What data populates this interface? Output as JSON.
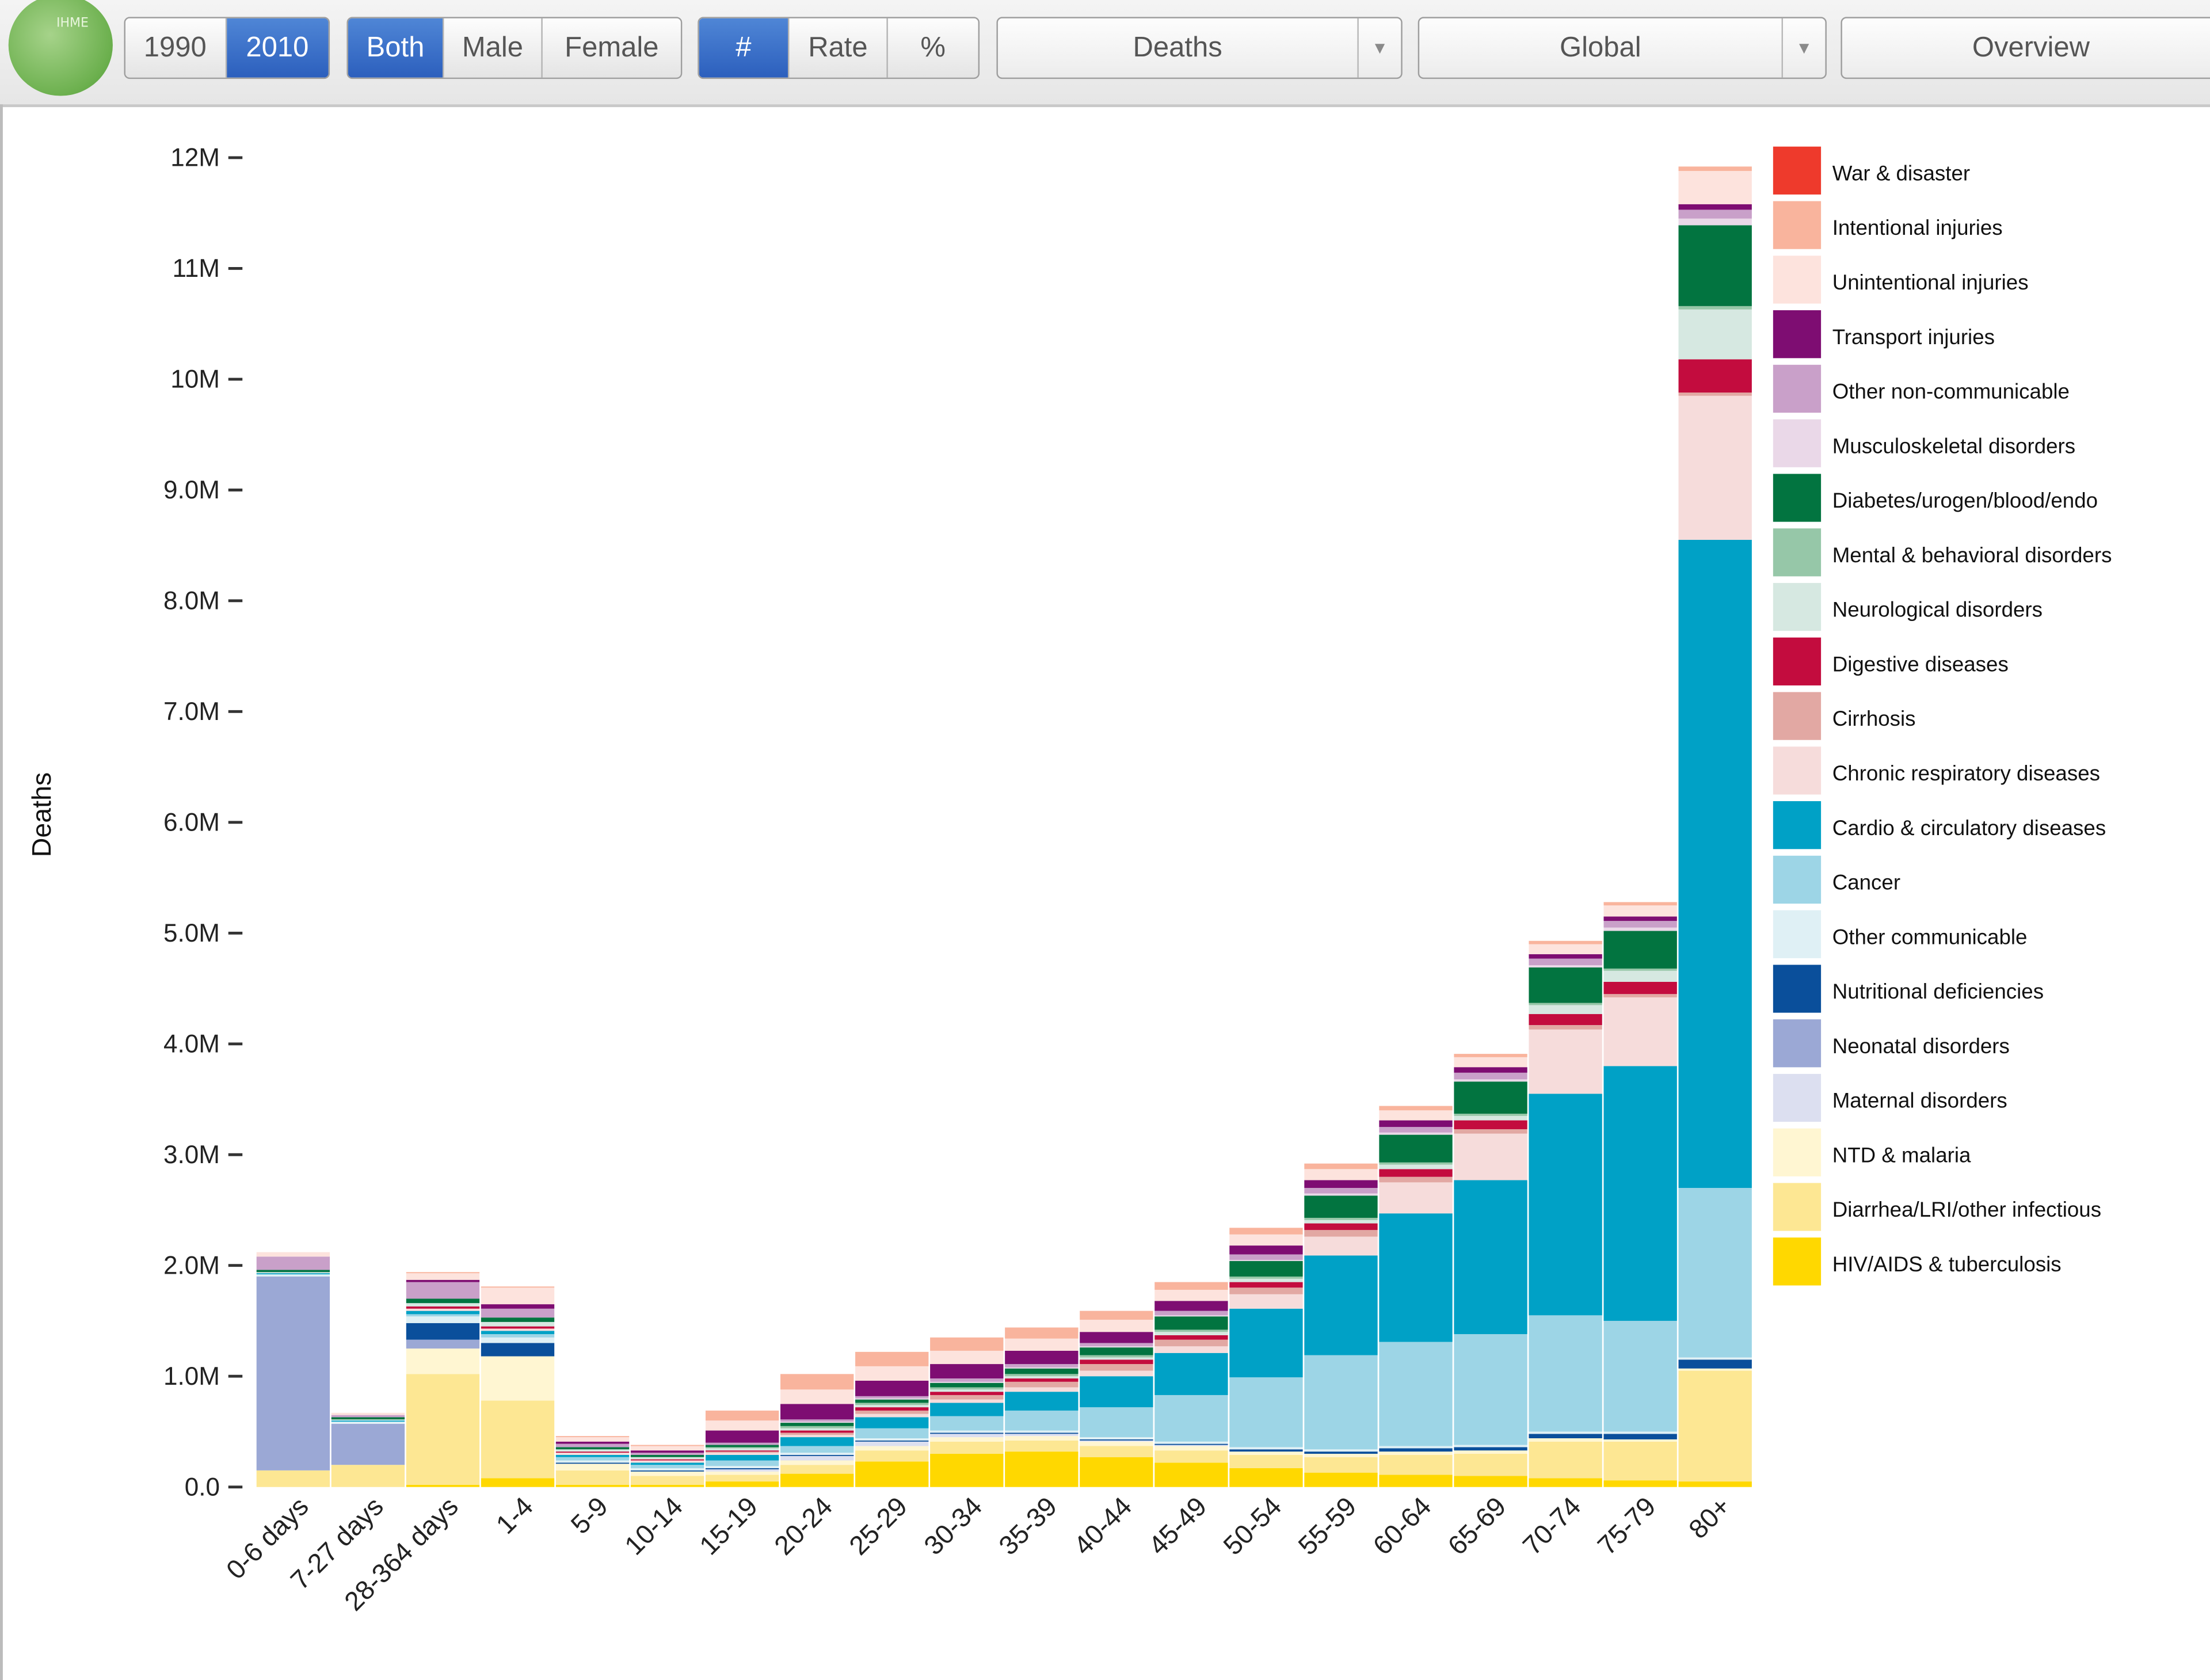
{
  "toolbar": {
    "logo_text": "IHME",
    "years": [
      "1990",
      "2010"
    ],
    "year_active": 1,
    "sexes": [
      "Both",
      "Male",
      "Female"
    ],
    "sex_active": 0,
    "units": [
      "#",
      "Rate",
      "%"
    ],
    "unit_active": 0,
    "measure": "Deaths",
    "location": "Global",
    "view": "Overview"
  },
  "chart_data": {
    "type": "bar",
    "stacked": true,
    "xlabel": "",
    "ylabel": "Deaths",
    "ylim": [
      0,
      12100000
    ],
    "yticks": [
      {
        "value": 0,
        "label": "0.0"
      },
      {
        "value": 1000000,
        "label": "1.0M"
      },
      {
        "value": 2000000,
        "label": "2.0M"
      },
      {
        "value": 3000000,
        "label": "3.0M"
      },
      {
        "value": 4000000,
        "label": "4.0M"
      },
      {
        "value": 5000000,
        "label": "5.0M"
      },
      {
        "value": 6000000,
        "label": "6.0M"
      },
      {
        "value": 7000000,
        "label": "7.0M"
      },
      {
        "value": 8000000,
        "label": "8.0M"
      },
      {
        "value": 9000000,
        "label": "9.0M"
      },
      {
        "value": 10000000,
        "label": "10M"
      },
      {
        "value": 11000000,
        "label": "11M"
      },
      {
        "value": 12000000,
        "label": "12M"
      }
    ],
    "categories": [
      "0-6 days",
      "7-27 days",
      "28-364 days",
      "1-4",
      "5-9",
      "10-14",
      "15-19",
      "20-24",
      "25-29",
      "30-34",
      "35-39",
      "40-44",
      "45-49",
      "50-54",
      "55-59",
      "60-64",
      "65-69",
      "70-74",
      "75-79",
      "80+"
    ],
    "legend_position": "right",
    "series": [
      {
        "name": "HIV/AIDS & tuberculosis",
        "color": "#ffd800",
        "values": [
          0,
          0,
          20000,
          80000,
          20000,
          20000,
          50000,
          120000,
          230000,
          300000,
          320000,
          270000,
          220000,
          170000,
          130000,
          110000,
          100000,
          80000,
          60000,
          50000
        ]
      },
      {
        "name": "Diarrhea/LRI/other infectious",
        "color": "#fde793",
        "values": [
          150000,
          200000,
          1000000,
          700000,
          130000,
          80000,
          60000,
          80000,
          100000,
          110000,
          100000,
          100000,
          110000,
          120000,
          140000,
          180000,
          200000,
          330000,
          350000,
          1000000
        ]
      },
      {
        "name": "NTD & malaria",
        "color": "#fff6d2",
        "values": [
          0,
          0,
          230000,
          400000,
          60000,
          40000,
          30000,
          40000,
          40000,
          40000,
          40000,
          40000,
          40000,
          30000,
          30000,
          30000,
          30000,
          30000,
          20000,
          20000
        ]
      },
      {
        "name": "Maternal disorders",
        "color": "#dcdff0",
        "values": [
          0,
          0,
          0,
          0,
          0,
          0,
          20000,
          40000,
          40000,
          30000,
          20000,
          10000,
          10000,
          0,
          0,
          0,
          0,
          0,
          0,
          0
        ]
      },
      {
        "name": "Neonatal disorders",
        "color": "#9ba8d5",
        "values": [
          1750000,
          370000,
          80000,
          0,
          0,
          0,
          0,
          0,
          0,
          0,
          0,
          0,
          0,
          0,
          0,
          0,
          0,
          0,
          0,
          0
        ]
      },
      {
        "name": "Nutritional deficiencies",
        "color": "#0a4f9b",
        "values": [
          0,
          0,
          150000,
          120000,
          10000,
          10000,
          10000,
          10000,
          10000,
          10000,
          10000,
          10000,
          10000,
          20000,
          20000,
          30000,
          30000,
          40000,
          50000,
          80000
        ]
      },
      {
        "name": "Other communicable",
        "color": "#dff0f5",
        "values": [
          20000,
          20000,
          60000,
          50000,
          20000,
          20000,
          20000,
          20000,
          20000,
          20000,
          20000,
          20000,
          20000,
          20000,
          20000,
          20000,
          20000,
          20000,
          20000,
          20000
        ]
      },
      {
        "name": "Cancer",
        "color": "#9dd5e6",
        "values": [
          0,
          0,
          20000,
          30000,
          30000,
          30000,
          50000,
          60000,
          90000,
          130000,
          180000,
          270000,
          420000,
          630000,
          850000,
          940000,
          1000000,
          1050000,
          1000000,
          1530000
        ]
      },
      {
        "name": "Cardio & circulatory diseases",
        "color": "#00a1c6",
        "values": [
          10000,
          10000,
          30000,
          30000,
          20000,
          20000,
          50000,
          80000,
          100000,
          120000,
          170000,
          280000,
          380000,
          620000,
          900000,
          1160000,
          1390000,
          2000000,
          2300000,
          5850000
        ]
      },
      {
        "name": "Chronic respiratory diseases",
        "color": "#f6dcdb",
        "values": [
          0,
          0,
          20000,
          20000,
          20000,
          20000,
          20000,
          20000,
          30000,
          30000,
          40000,
          50000,
          60000,
          130000,
          170000,
          280000,
          420000,
          580000,
          620000,
          1300000
        ]
      },
      {
        "name": "Cirrhosis",
        "color": "#e2a8a3",
        "values": [
          0,
          0,
          0,
          0,
          0,
          0,
          10000,
          20000,
          30000,
          40000,
          50000,
          60000,
          60000,
          60000,
          60000,
          50000,
          40000,
          40000,
          30000,
          30000
        ]
      },
      {
        "name": "Digestive diseases",
        "color": "#c30c3e",
        "values": [
          0,
          0,
          20000,
          20000,
          10000,
          10000,
          10000,
          20000,
          30000,
          30000,
          30000,
          40000,
          40000,
          50000,
          60000,
          70000,
          80000,
          100000,
          110000,
          300000
        ]
      },
      {
        "name": "Neurological disorders",
        "color": "#d6e8e1",
        "values": [
          10000,
          10000,
          30000,
          40000,
          20000,
          20000,
          20000,
          20000,
          20000,
          20000,
          20000,
          20000,
          30000,
          30000,
          30000,
          40000,
          40000,
          80000,
          100000,
          450000
        ]
      },
      {
        "name": "Mental & behavioral disorders",
        "color": "#96c7a8",
        "values": [
          0,
          0,
          0,
          0,
          0,
          0,
          10000,
          20000,
          20000,
          20000,
          20000,
          20000,
          20000,
          20000,
          20000,
          20000,
          20000,
          20000,
          20000,
          30000
        ]
      },
      {
        "name": "Diabetes/urogen/blood/endo",
        "color": "#027440",
        "values": [
          20000,
          20000,
          40000,
          40000,
          20000,
          20000,
          20000,
          30000,
          30000,
          40000,
          50000,
          70000,
          120000,
          140000,
          200000,
          250000,
          290000,
          320000,
          340000,
          730000
        ]
      },
      {
        "name": "Musculoskeletal disorders",
        "color": "#ead8e8",
        "values": [
          0,
          0,
          0,
          0,
          0,
          0,
          0,
          10000,
          10000,
          10000,
          10000,
          10000,
          10000,
          10000,
          20000,
          20000,
          20000,
          20000,
          30000,
          60000
        ]
      },
      {
        "name": "Other non-communicable",
        "color": "#c9a0c9",
        "values": [
          120000,
          20000,
          150000,
          80000,
          30000,
          20000,
          20000,
          20000,
          20000,
          30000,
          30000,
          30000,
          40000,
          50000,
          50000,
          50000,
          60000,
          60000,
          60000,
          80000
        ]
      },
      {
        "name": "Transport injuries",
        "color": "#7e0d72",
        "values": [
          0,
          0,
          20000,
          40000,
          20000,
          20000,
          110000,
          140000,
          140000,
          130000,
          120000,
          100000,
          90000,
          80000,
          70000,
          60000,
          50000,
          40000,
          40000,
          50000
        ]
      },
      {
        "name": "Unintentional injuries",
        "color": "#fde3dd",
        "values": [
          40000,
          20000,
          60000,
          150000,
          40000,
          40000,
          90000,
          130000,
          130000,
          120000,
          110000,
          110000,
          100000,
          100000,
          100000,
          90000,
          90000,
          90000,
          100000,
          300000
        ]
      },
      {
        "name": "Intentional injuries",
        "color": "#f9b49d",
        "values": [
          0,
          0,
          10000,
          10000,
          10000,
          10000,
          90000,
          140000,
          130000,
          120000,
          100000,
          80000,
          70000,
          60000,
          50000,
          40000,
          30000,
          30000,
          30000,
          40000
        ]
      },
      {
        "name": "War & disaster",
        "color": "#ee3a2c",
        "values": [
          0,
          0,
          0,
          0,
          0,
          0,
          0,
          0,
          0,
          0,
          0,
          0,
          0,
          0,
          0,
          0,
          0,
          0,
          0,
          0
        ]
      }
    ]
  }
}
